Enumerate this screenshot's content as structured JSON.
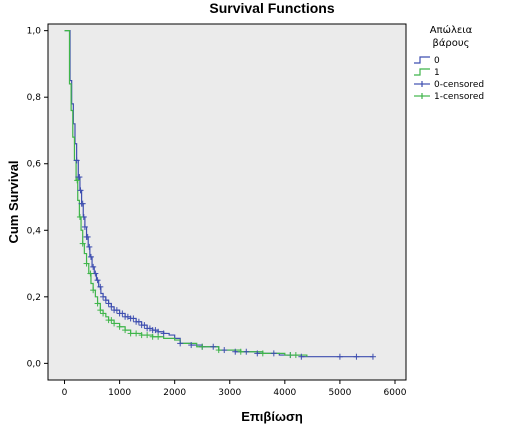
{
  "chart_data": {
    "type": "line",
    "step": true,
    "title": "Survival Functions",
    "xlabel": "Επιβίωση",
    "ylabel": "Cum Survival",
    "xlim": [
      -300,
      6200
    ],
    "ylim": [
      -0.05,
      1.02
    ],
    "x_ticks": [
      0,
      1000,
      2000,
      3000,
      4000,
      5000,
      6000
    ],
    "x_tick_labels": [
      "0",
      "1000",
      "2000",
      "3000",
      "4000",
      "5000",
      "6000"
    ],
    "y_ticks": [
      0.0,
      0.2,
      0.4,
      0.6,
      0.8,
      1.0
    ],
    "y_tick_labels": [
      "0,0",
      "0,2",
      "0,4",
      "0,6",
      "0,8",
      "1,0"
    ],
    "plot_background": "#ebebeb",
    "legend": {
      "title_lines": [
        "Απώλεια",
        "βάρους"
      ],
      "placement": "right",
      "entries": [
        "0",
        "1",
        "0-censored",
        "1-censored"
      ]
    },
    "series": [
      {
        "name": "0",
        "color": "#3f4fb0",
        "x": [
          0,
          60,
          100,
          130,
          160,
          190,
          220,
          250,
          280,
          310,
          340,
          370,
          400,
          430,
          460,
          500,
          540,
          580,
          620,
          660,
          700,
          750,
          800,
          850,
          900,
          1000,
          1100,
          1200,
          1300,
          1400,
          1500,
          1600,
          1700,
          1800,
          1900,
          2000,
          2100,
          2300,
          2500,
          2800,
          3100,
          3500,
          3900,
          4300,
          5600
        ],
        "y": [
          1.0,
          1.0,
          0.85,
          0.78,
          0.72,
          0.66,
          0.61,
          0.56,
          0.52,
          0.48,
          0.44,
          0.41,
          0.38,
          0.35,
          0.32,
          0.29,
          0.27,
          0.25,
          0.23,
          0.21,
          0.2,
          0.19,
          0.18,
          0.17,
          0.16,
          0.15,
          0.14,
          0.135,
          0.125,
          0.115,
          0.105,
          0.1,
          0.095,
          0.09,
          0.085,
          0.075,
          0.06,
          0.055,
          0.05,
          0.04,
          0.035,
          0.03,
          0.025,
          0.02,
          0.02
        ],
        "censored_x": [
          220,
          250,
          270,
          290,
          310,
          330,
          350,
          370,
          400,
          420,
          450,
          480,
          520,
          560,
          600,
          650,
          700,
          750,
          800,
          850,
          900,
          950,
          1000,
          1050,
          1100,
          1150,
          1200,
          1250,
          1300,
          1350,
          1400,
          1450,
          1500,
          1550,
          1600,
          1650,
          1700,
          1800,
          2100,
          2300,
          2500,
          2700,
          2900,
          3100,
          3300,
          3500,
          3800,
          4100,
          4300,
          5000,
          5300,
          5600
        ]
      },
      {
        "name": "1",
        "color": "#3fb54a",
        "x": [
          0,
          60,
          90,
          120,
          150,
          180,
          210,
          240,
          270,
          300,
          330,
          360,
          400,
          440,
          480,
          520,
          560,
          600,
          650,
          700,
          750,
          800,
          900,
          1000,
          1100,
          1200,
          1400,
          1600,
          1800,
          2000,
          2100,
          2400,
          2800,
          3200,
          3600,
          4000,
          4400
        ],
        "y": [
          1.0,
          1.0,
          0.84,
          0.76,
          0.68,
          0.61,
          0.55,
          0.49,
          0.44,
          0.4,
          0.36,
          0.33,
          0.3,
          0.27,
          0.24,
          0.22,
          0.2,
          0.18,
          0.16,
          0.15,
          0.14,
          0.13,
          0.12,
          0.11,
          0.1,
          0.09,
          0.085,
          0.08,
          0.075,
          0.07,
          0.06,
          0.05,
          0.04,
          0.035,
          0.03,
          0.025,
          0.02
        ],
        "censored_x": [
          230,
          280,
          330,
          400,
          470,
          520,
          600,
          650,
          700,
          800,
          850,
          900,
          1000,
          1100,
          1200,
          1300,
          1400,
          1500,
          1600,
          1700,
          2500,
          2800,
          3200,
          3600,
          4100,
          4200
        ]
      }
    ]
  }
}
